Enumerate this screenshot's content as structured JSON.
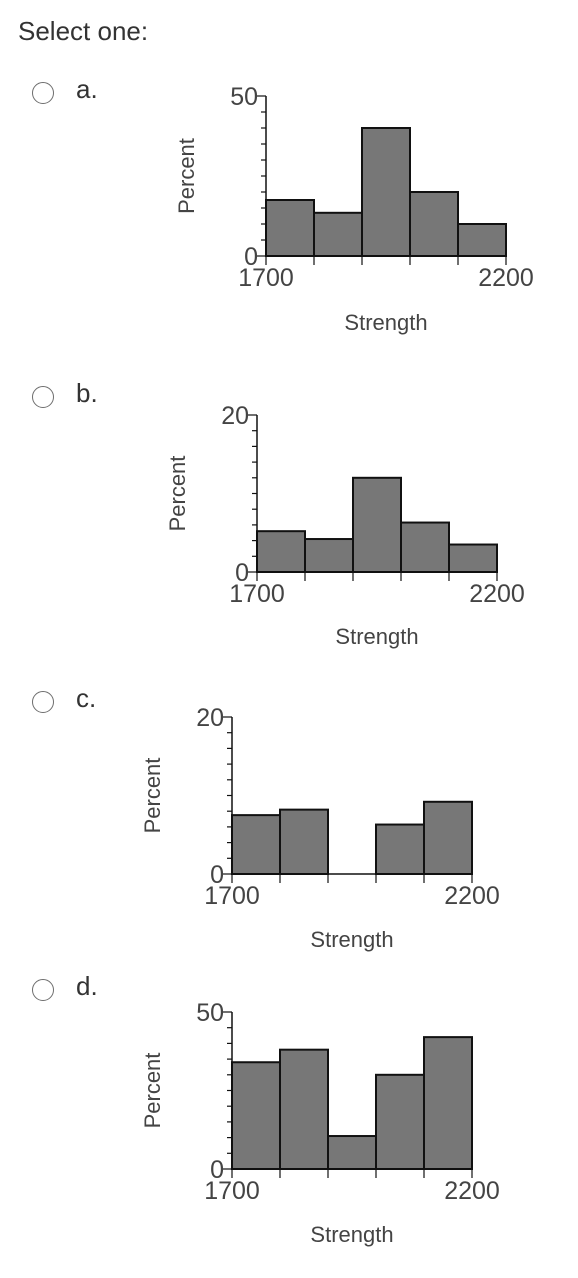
{
  "question": {
    "prompt": "Select one:"
  },
  "options": [
    {
      "label": "a.",
      "chart_data": {
        "type": "bar",
        "bin_edges": [
          1700,
          1800,
          1900,
          2000,
          2100,
          2200
        ],
        "values": [
          17.5,
          13.5,
          40,
          20,
          10
        ],
        "xlabel": "Strength",
        "ylabel": "Percent",
        "x_tick_labels": [
          "1700",
          "2200"
        ],
        "y_tick_labels": [
          "0",
          "50"
        ],
        "xlim": [
          1700,
          2200
        ],
        "ylim": [
          0,
          50
        ],
        "bar_color": "#777777"
      }
    },
    {
      "label": "b.",
      "chart_data": {
        "type": "bar",
        "bin_edges": [
          1700,
          1800,
          1900,
          2000,
          2100,
          2200
        ],
        "values": [
          5.2,
          4.2,
          12,
          6.3,
          3.5
        ],
        "xlabel": "Strength",
        "ylabel": "Percent",
        "x_tick_labels": [
          "1700",
          "2200"
        ],
        "y_tick_labels": [
          "0",
          "20"
        ],
        "xlim": [
          1700,
          2200
        ],
        "ylim": [
          0,
          20
        ],
        "bar_color": "#777777"
      }
    },
    {
      "label": "c.",
      "chart_data": {
        "type": "bar",
        "bin_edges": [
          1700,
          1800,
          1900,
          2000,
          2100,
          2200
        ],
        "values": [
          7.5,
          8.2,
          0,
          6.3,
          9.2
        ],
        "xlabel": "Strength",
        "ylabel": "Percent",
        "x_tick_labels": [
          "1700",
          "2200"
        ],
        "y_tick_labels": [
          "0",
          "20"
        ],
        "xlim": [
          1700,
          2200
        ],
        "ylim": [
          0,
          20
        ],
        "bar_color": "#777777"
      }
    },
    {
      "label": "d.",
      "chart_data": {
        "type": "bar",
        "bin_edges": [
          1700,
          1800,
          1900,
          2000,
          2100,
          2200
        ],
        "values": [
          34,
          38,
          10.5,
          30,
          42
        ],
        "xlabel": "Strength",
        "ylabel": "Percent",
        "x_tick_labels": [
          "1700",
          "2200"
        ],
        "y_tick_labels": [
          "0",
          "50"
        ],
        "xlim": [
          1700,
          2200
        ],
        "ylim": [
          0,
          50
        ],
        "bar_color": "#777777"
      }
    }
  ]
}
